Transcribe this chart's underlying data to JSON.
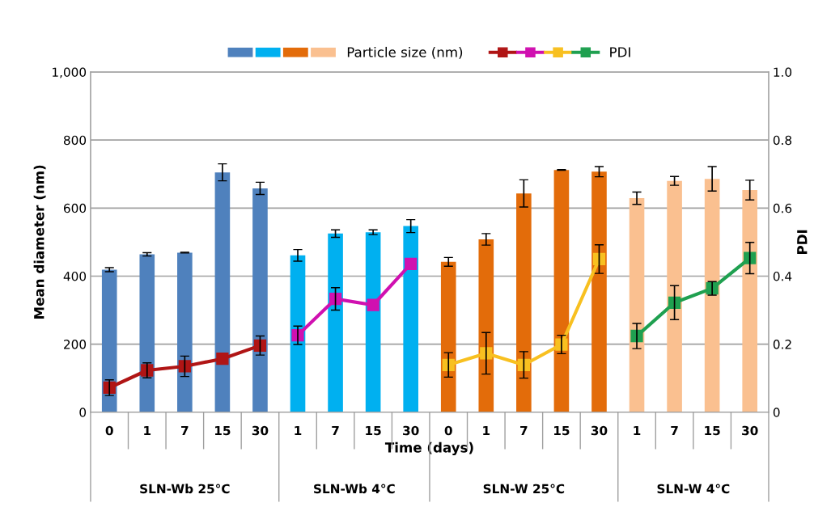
{
  "chart_data": {
    "type": "bar",
    "xlabel": "Time (days)",
    "ylabel": "Mean diameter (nm)",
    "y2label": "PDI",
    "categories": [
      "0",
      "1",
      "7",
      "15",
      "30",
      "1",
      "7",
      "15",
      "30",
      "0",
      "1",
      "7",
      "15",
      "30",
      "1",
      "7",
      "15",
      "30"
    ],
    "series": [
      {
        "name": "Particle size (nm)",
        "color": "#4f81bd",
        "values": [
          419,
          464,
          469,
          705,
          658,
          null,
          null,
          null,
          null,
          null,
          null,
          null,
          null,
          null,
          null,
          null,
          null,
          null
        ],
        "errors": [
          6,
          5,
          1,
          25,
          18,
          null,
          null,
          null,
          null,
          null,
          null,
          null,
          null,
          null,
          null,
          null,
          null,
          null
        ]
      },
      {
        "color": "#00b0f0",
        "values": [
          null,
          null,
          null,
          null,
          null,
          461,
          525,
          529,
          547,
          null,
          null,
          null,
          null,
          null,
          null,
          null,
          null,
          null
        ],
        "errors": [
          null,
          null,
          null,
          null,
          null,
          17,
          11,
          7,
          19,
          null,
          null,
          null,
          null,
          null,
          null,
          null,
          null,
          null
        ]
      },
      {
        "color": "#e36c0a",
        "values": [
          null,
          null,
          null,
          null,
          null,
          null,
          null,
          null,
          null,
          442,
          508,
          643,
          712,
          707,
          null,
          null,
          null,
          null
        ],
        "errors": [
          null,
          null,
          null,
          null,
          null,
          null,
          null,
          null,
          null,
          13,
          17,
          40,
          1,
          15,
          null,
          null,
          null,
          null
        ]
      },
      {
        "color": "#fac090",
        "values": [
          null,
          null,
          null,
          null,
          null,
          null,
          null,
          null,
          null,
          null,
          null,
          null,
          null,
          null,
          629,
          680,
          686,
          653
        ],
        "errors": [
          null,
          null,
          null,
          null,
          null,
          null,
          null,
          null,
          null,
          null,
          null,
          null,
          null,
          null,
          18,
          13,
          36,
          29
        ]
      },
      {
        "name": "PDI",
        "type": "line",
        "axis": "y2",
        "color": "#b01515",
        "values": [
          0.072,
          0.123,
          0.135,
          0.157,
          0.196,
          null,
          null,
          null,
          null,
          null,
          null,
          null,
          null,
          null,
          null,
          null,
          null,
          null
        ],
        "errors": [
          0.023,
          0.022,
          0.03,
          null,
          0.028,
          null,
          null,
          null,
          null,
          null,
          null,
          null,
          null,
          null,
          null,
          null,
          null,
          null
        ]
      },
      {
        "type": "line",
        "axis": "y2",
        "color": "#d010b0",
        "values": [
          null,
          null,
          null,
          null,
          null,
          0.226,
          0.333,
          0.315,
          0.436,
          null,
          null,
          null,
          null,
          null,
          null,
          null,
          null,
          null
        ],
        "errors": [
          null,
          null,
          null,
          null,
          null,
          0.027,
          0.033,
          null,
          null,
          null,
          null,
          null,
          null,
          null,
          null,
          null,
          null,
          null
        ]
      },
      {
        "type": "line",
        "axis": "y2",
        "color": "#f8c020",
        "values": [
          null,
          null,
          null,
          null,
          null,
          null,
          null,
          null,
          null,
          0.139,
          0.173,
          0.139,
          0.199,
          0.45,
          null,
          null,
          null,
          null
        ],
        "errors": [
          null,
          null,
          null,
          null,
          null,
          null,
          null,
          null,
          null,
          0.036,
          0.061,
          0.039,
          0.027,
          0.042,
          null,
          null,
          null,
          null
        ]
      },
      {
        "type": "line",
        "axis": "y2",
        "color": "#1fa050",
        "values": [
          null,
          null,
          null,
          null,
          null,
          null,
          null,
          null,
          null,
          null,
          null,
          null,
          null,
          null,
          0.224,
          0.322,
          0.364,
          0.453
        ],
        "errors": [
          null,
          null,
          null,
          null,
          null,
          null,
          null,
          null,
          null,
          null,
          null,
          null,
          null,
          null,
          0.037,
          0.05,
          0.02,
          0.046
        ]
      }
    ],
    "annotations": [
      "SLN-Wb 25°C",
      "SLN-Wb 4°C",
      "SLN-W 25°C",
      "SLN-W 4°C"
    ],
    "ylim": [
      0,
      1000
    ],
    "yticks": [
      0,
      200,
      400,
      600,
      {
        "value": 800,
        "label": "800"
      },
      {
        "value": 1000,
        "label": "1,000"
      }
    ],
    "y2lim": [
      0,
      1
    ],
    "y2ticks": [
      0,
      0.2,
      0.4,
      0.6,
      0.8,
      {
        "value": 1,
        "label": "1.0"
      }
    ],
    "grid": "y",
    "legend": "top",
    "marker": "square"
  }
}
